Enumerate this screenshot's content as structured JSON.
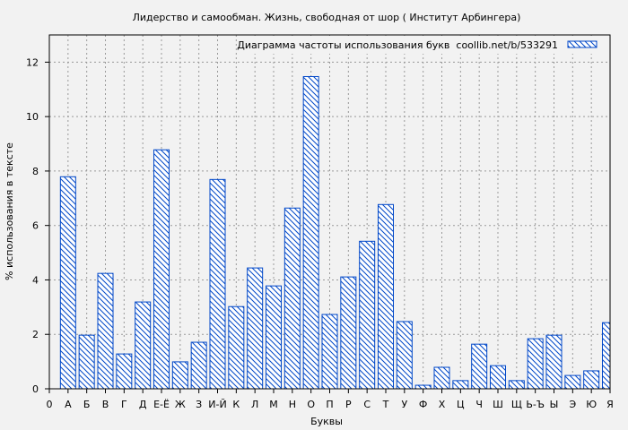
{
  "chart_data": {
    "type": "bar",
    "title": "Лидерство и самообман. Жизнь, свободная от шор ( Институт Арбингера)",
    "xlabel": "Буквы",
    "ylabel": "% использования в тексте",
    "legend": {
      "label": "Диаграмма частоты использования букв  coollib.net/b/533291",
      "placement": "top-right"
    },
    "x_origin_label": "0",
    "categories": [
      "А",
      "Б",
      "В",
      "Г",
      "Д",
      "Е-Ё",
      "Ж",
      "З",
      "И-Й",
      "К",
      "Л",
      "М",
      "Н",
      "О",
      "П",
      "Р",
      "С",
      "Т",
      "У",
      "Ф",
      "Х",
      "Ц",
      "Ч",
      "Ш",
      "Щ",
      "Ь-Ъ",
      "Ы",
      "Э",
      "Ю",
      "Я"
    ],
    "values": [
      7.79,
      1.97,
      4.24,
      1.28,
      3.19,
      8.78,
      0.99,
      1.71,
      7.69,
      3.02,
      4.44,
      3.78,
      6.64,
      11.47,
      2.73,
      4.11,
      5.42,
      6.77,
      2.47,
      0.13,
      0.79,
      0.3,
      1.64,
      0.85,
      0.3,
      1.84,
      1.97,
      0.49,
      0.66,
      2.43
    ],
    "ylim": [
      0,
      13
    ],
    "yticks": [
      0,
      2,
      4,
      6,
      8,
      10,
      12
    ],
    "grid": true,
    "colors": {
      "bar_stroke": "#0047c8",
      "background": "#f2f2f2"
    }
  }
}
